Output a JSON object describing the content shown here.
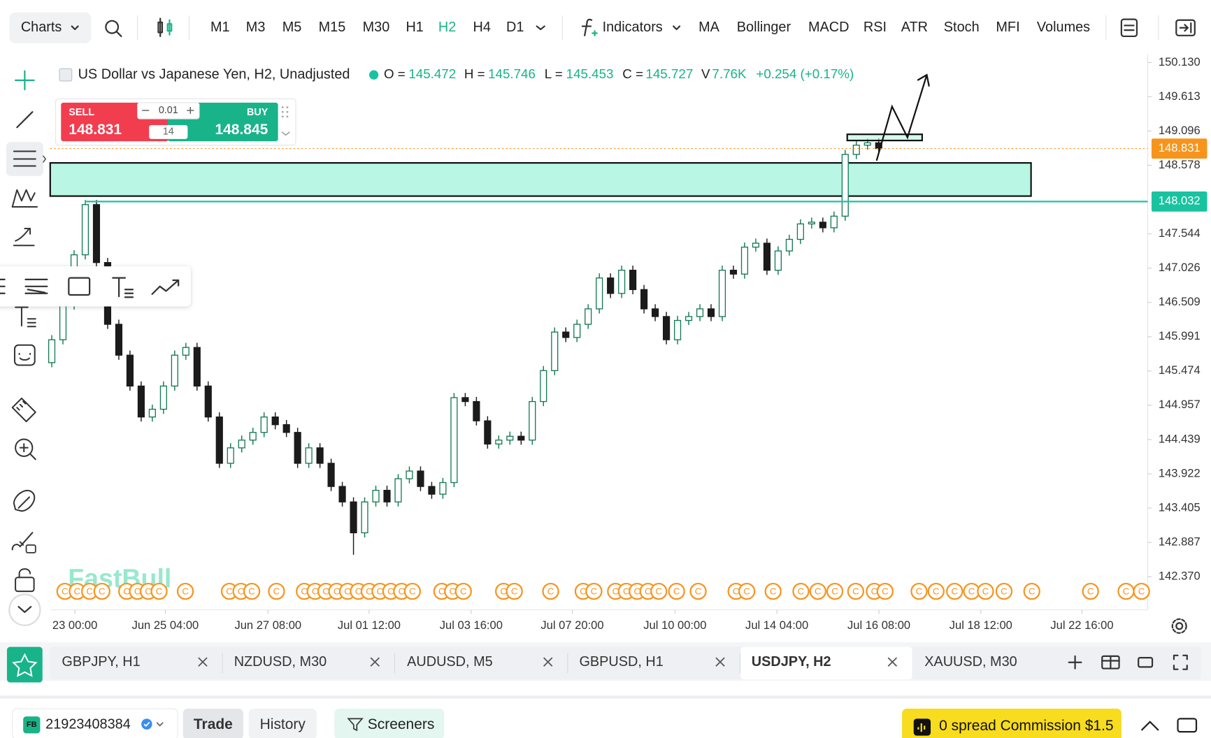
{
  "toolbar": {
    "charts": "Charts",
    "timeframes": [
      "M1",
      "M3",
      "M5",
      "M15",
      "M30",
      "H1",
      "H2",
      "H4",
      "D1"
    ],
    "indicators": "Indicators",
    "studies": [
      "MA",
      "Bollinger",
      "MACD",
      "RSI",
      "ATR",
      "Stoch",
      "MFI",
      "Volumes"
    ]
  },
  "chart_data": {
    "type": "candlestick",
    "title": "US Dollar vs Japanese Yen, H2, Unadjusted",
    "ohlc_legend": [
      {
        "label": "O =",
        "value": "145.472"
      },
      {
        "label": "H =",
        "value": "145.746"
      },
      {
        "label": "L =",
        "value": "145.453"
      },
      {
        "label": "C =",
        "value": "145.727"
      }
    ],
    "volume": {
      "label": "V",
      "value": "7.76K"
    },
    "change": "+0.254 (+0.17%)",
    "trade_panel": {
      "sell_label": "SELL",
      "sell": 148.831,
      "buy_label": "BUY",
      "buy": 148.845,
      "lot": "0.01",
      "spread": 14
    },
    "x": [
      0,
      1,
      2,
      3,
      4,
      5,
      6,
      7,
      8,
      9,
      10,
      11,
      12,
      13,
      14,
      15,
      16,
      17,
      18,
      19,
      20,
      21,
      22,
      23,
      24,
      25,
      26,
      27,
      28,
      29,
      30,
      31,
      32,
      33,
      34,
      35,
      36,
      37,
      38,
      39,
      40,
      41,
      42,
      43,
      44,
      45,
      46,
      47,
      48,
      49,
      50,
      51,
      52,
      53,
      54,
      55,
      56,
      57,
      58,
      59,
      60,
      61,
      62,
      63,
      64,
      65,
      66,
      67,
      68,
      69,
      70,
      71,
      72,
      73,
      74
    ],
    "series": {
      "open": [
        145.6,
        145.946,
        146.47,
        147.228,
        147.985,
        147.111,
        146.179,
        145.713,
        145.247,
        144.78,
        144.897,
        145.247,
        145.713,
        145.829,
        145.247,
        144.78,
        144.081,
        144.314,
        144.431,
        144.547,
        144.78,
        144.664,
        144.547,
        144.081,
        144.314,
        144.081,
        143.731,
        143.498,
        143.032,
        143.498,
        143.673,
        143.498,
        143.848,
        143.964,
        143.731,
        143.615,
        143.79,
        145.072,
        145.013,
        144.722,
        144.372,
        144.431,
        144.489,
        144.431,
        145.013,
        145.48,
        146.062,
        145.98,
        146.179,
        146.412,
        146.878,
        146.645,
        146.995,
        146.703,
        146.412,
        146.296,
        145.946,
        146.237,
        146.296,
        146.412,
        146.296,
        146.995,
        146.937,
        147.344,
        147.403,
        146.995,
        147.286,
        147.461,
        147.694,
        147.72,
        147.636,
        147.811,
        148.743,
        148.883,
        148.918
      ],
      "high": [
        146.016,
        146.54,
        147.298,
        148.055,
        148.055,
        147.181,
        146.249,
        145.783,
        145.317,
        144.967,
        145.317,
        145.783,
        145.899,
        145.899,
        145.317,
        144.85,
        144.384,
        144.501,
        144.617,
        144.85,
        144.85,
        144.734,
        144.617,
        144.384,
        144.384,
        144.151,
        143.801,
        143.568,
        143.568,
        143.743,
        143.743,
        143.918,
        144.034,
        144.034,
        143.801,
        143.86,
        145.142,
        145.142,
        145.083,
        144.792,
        144.501,
        144.559,
        144.559,
        145.083,
        145.55,
        146.132,
        146.132,
        146.249,
        146.482,
        146.948,
        146.948,
        147.065,
        147.065,
        146.773,
        146.482,
        146.366,
        146.307,
        146.366,
        146.482,
        146.482,
        147.065,
        147.065,
        147.414,
        147.473,
        147.473,
        147.356,
        147.531,
        147.764,
        147.79,
        147.79,
        147.881,
        148.813,
        148.953,
        148.988,
        148.988
      ],
      "low": [
        145.53,
        145.876,
        146.4,
        147.158,
        147.041,
        146.109,
        145.643,
        145.177,
        144.71,
        144.71,
        144.827,
        145.177,
        145.643,
        145.177,
        144.71,
        144.011,
        144.011,
        144.244,
        144.361,
        144.477,
        144.594,
        144.477,
        144.011,
        144.011,
        144.011,
        143.661,
        143.428,
        142.7,
        142.962,
        143.428,
        143.428,
        143.428,
        143.778,
        143.661,
        143.545,
        143.545,
        143.72,
        144.943,
        144.652,
        144.302,
        144.302,
        144.361,
        144.361,
        144.361,
        144.943,
        145.41,
        145.91,
        145.91,
        146.109,
        146.342,
        146.575,
        146.575,
        146.633,
        146.342,
        146.226,
        145.876,
        145.876,
        146.167,
        146.226,
        146.226,
        146.226,
        146.867,
        146.867,
        147.274,
        146.925,
        146.925,
        147.216,
        147.391,
        147.624,
        147.566,
        147.566,
        147.741,
        148.673,
        148.813,
        148.761
      ],
      "close": [
        145.946,
        146.47,
        147.228,
        147.985,
        147.111,
        146.179,
        145.713,
        145.247,
        144.78,
        144.897,
        145.247,
        145.713,
        145.829,
        145.247,
        144.78,
        144.081,
        144.314,
        144.431,
        144.547,
        144.78,
        144.664,
        144.547,
        144.081,
        144.314,
        144.081,
        143.731,
        143.498,
        143.032,
        143.498,
        143.673,
        143.498,
        143.848,
        143.964,
        143.731,
        143.615,
        143.79,
        145.072,
        145.013,
        144.722,
        144.372,
        144.431,
        144.489,
        144.431,
        145.013,
        145.48,
        146.062,
        145.98,
        146.179,
        146.412,
        146.878,
        146.645,
        146.995,
        146.703,
        146.412,
        146.296,
        145.946,
        146.237,
        146.296,
        146.412,
        146.296,
        146.995,
        146.937,
        147.344,
        147.403,
        146.995,
        147.286,
        147.461,
        147.694,
        147.72,
        147.636,
        147.811,
        148.743,
        148.883,
        148.918,
        148.831
      ]
    },
    "up_color": "#127a52",
    "down_color": "#1b1b1b",
    "xlim": [
      -0.14,
      98
    ],
    "xticks": [
      {
        "value": 2.07,
        "label": "23 00:00"
      },
      {
        "value": 10.16,
        "label": "Jun 25 04:00"
      },
      {
        "value": 19.35,
        "label": "Jun 27 08:00"
      },
      {
        "value": 28.4,
        "label": "Jul 01 12:00"
      },
      {
        "value": 37.53,
        "label": "Jul 03 16:00"
      },
      {
        "value": 46.58,
        "label": "Jul 07 20:00"
      },
      {
        "value": 55.77,
        "label": "Jul 10 00:00"
      },
      {
        "value": 64.89,
        "label": "Jul 14 04:00"
      },
      {
        "value": 74.02,
        "label": "Jul 16 08:00"
      },
      {
        "value": 83.14,
        "label": "Jul 18 12:00"
      },
      {
        "value": 92.19,
        "label": "Jul 22 16:00"
      }
    ],
    "ylim": [
      141.869,
      150.258
    ],
    "yticks": [
      {
        "value": 150.13,
        "label": "150.130"
      },
      149.613,
      149.096,
      148.578,
      147.544,
      147.026,
      146.509,
      145.991,
      145.474,
      144.957,
      144.439,
      143.922,
      143.405,
      142.887,
      {
        "value": 142.37,
        "label": "142.370"
      }
    ],
    "price_line": {
      "value": 148.032,
      "color": "#19c3a0"
    },
    "current_price": {
      "value": 148.831,
      "color": "#f7941d"
    },
    "event_label": "C"
  },
  "tabs": [
    "GBPJPY, H1",
    "NZDUSD, M30",
    "AUDUSD, M5",
    "GBPUSD, H1",
    "USDJPY, H2",
    "XAUUSD, M30"
  ],
  "bottom": {
    "logo": "FB",
    "account": "21923408384",
    "trade": "Trade",
    "history": "History",
    "screeners": "Screeners",
    "promo": "0 spread Commission $1.5"
  },
  "watermark": "FastBull"
}
